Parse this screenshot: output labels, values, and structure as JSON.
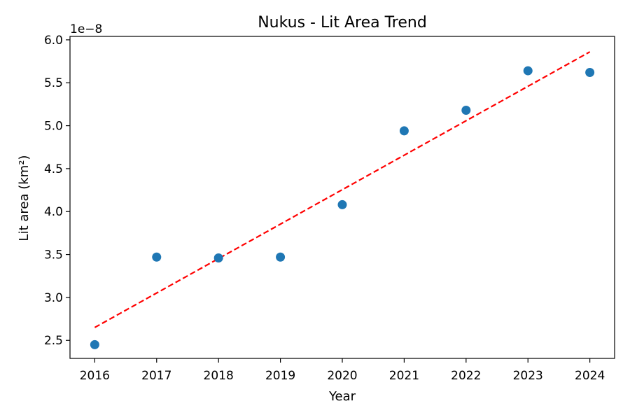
{
  "chart_data": {
    "type": "scatter",
    "title": "Nukus - Lit Area Trend",
    "xlabel": "Year",
    "ylabel": "Lit area (km²)",
    "y_offset_label": "1e−8",
    "y_scale_exponent": -8,
    "xlim": [
      2015.6,
      2024.4
    ],
    "ylim": [
      2.29,
      6.04
    ],
    "x_ticks": [
      2016,
      2017,
      2018,
      2019,
      2020,
      2021,
      2022,
      2023,
      2024
    ],
    "x_tick_labels": [
      "2016",
      "2017",
      "2018",
      "2019",
      "2020",
      "2021",
      "2022",
      "2023",
      "2024"
    ],
    "y_ticks": [
      2.5,
      3.0,
      3.5,
      4.0,
      4.5,
      5.0,
      5.5,
      6.0
    ],
    "y_tick_labels": [
      "2.5",
      "3.0",
      "3.5",
      "4.0",
      "4.5",
      "5.0",
      "5.5",
      "6.0"
    ],
    "grid": false,
    "series": [
      {
        "type": "scatter",
        "color": "#1f77b4",
        "x": [
          2016,
          2017,
          2018,
          2019,
          2020,
          2021,
          2022,
          2023,
          2024
        ],
        "y": [
          2.45,
          3.47,
          3.46,
          3.47,
          4.08,
          4.94,
          5.18,
          5.64,
          5.62
        ]
      },
      {
        "type": "line",
        "style": "dashed",
        "color": "#ff0000",
        "x": [
          2016,
          2024
        ],
        "y": [
          2.65,
          5.86
        ]
      }
    ]
  }
}
